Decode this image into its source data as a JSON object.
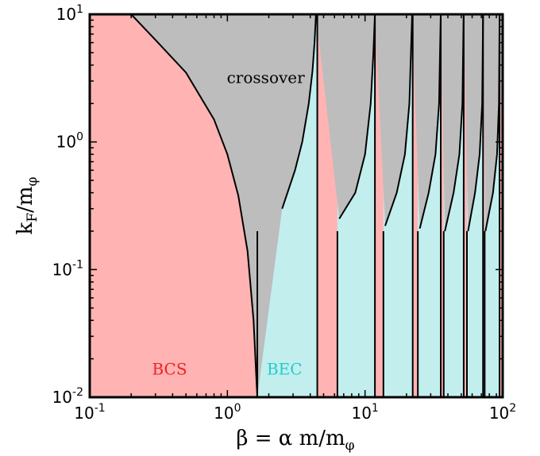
{
  "chart_data": {
    "type": "area",
    "title": "",
    "xlabel": {
      "prefix": "β = α m/m",
      "subscript": "φ"
    },
    "ylabel": {
      "base": "k",
      "base_sub": "F",
      "mid": "/m",
      "mid_sub": "φ"
    },
    "xscale": "log",
    "yscale": "log",
    "xlim": [
      0.1,
      100
    ],
    "ylim": [
      0.01,
      10
    ],
    "x_ticks": [
      {
        "value": 0.1,
        "base": "10",
        "exp": "-1"
      },
      {
        "value": 1,
        "base": "10",
        "exp": "0"
      },
      {
        "value": 10,
        "base": "10",
        "exp": "1"
      },
      {
        "value": 100,
        "base": "10",
        "exp": "2"
      }
    ],
    "y_ticks": [
      {
        "value": 0.01,
        "base": "10",
        "exp": "-2"
      },
      {
        "value": 0.1,
        "base": "10",
        "exp": "-1"
      },
      {
        "value": 1,
        "base": "10",
        "exp": "0"
      },
      {
        "value": 10,
        "base": "10",
        "exp": "1"
      }
    ],
    "grid": false,
    "regions": [
      {
        "name": "BCS",
        "color": "#ffb3b3",
        "label_at": [
          0.38,
          0.015
        ],
        "label_color": "#ee2222"
      },
      {
        "name": "BEC",
        "color": "#c2eeee",
        "label_at": [
          2.6,
          0.015
        ],
        "label_color": "#22cccc"
      },
      {
        "name": "crossover",
        "color": "#bdbdbd",
        "label_at": [
          1.9,
          2.9
        ],
        "label_color": "#000000"
      }
    ],
    "crossover_boundary": {
      "x": [
        0.2,
        0.3,
        0.5,
        0.8,
        1.0,
        1.2,
        1.4,
        1.55,
        1.62,
        1.65
      ],
      "y": [
        10,
        6.3,
        3.5,
        1.5,
        0.8,
        0.38,
        0.14,
        0.04,
        0.015,
        0.01
      ]
    },
    "resonances": [
      4.5,
      11.8,
      22.2,
      35.5,
      52.1,
      72.0,
      94.9
    ],
    "bec_lower_edges": [
      1.65,
      6.3,
      13.6,
      24.2,
      37.3,
      55.0,
      74.0
    ],
    "bec_curves": [
      {
        "x": [
          2.5,
          3.1,
          3.5,
          3.9,
          4.15,
          4.3,
          4.4
        ],
        "y": [
          0.3,
          0.6,
          1.0,
          2.0,
          3.6,
          6.0,
          10
        ]
      },
      {
        "x": [
          6.5,
          8.5,
          10.0,
          11.0,
          11.5,
          11.8
        ],
        "y": [
          0.25,
          0.4,
          0.8,
          2.0,
          5.0,
          10
        ]
      },
      {
        "x": [
          14.0,
          17.0,
          19.5,
          21.0,
          22.0
        ],
        "y": [
          0.22,
          0.4,
          0.8,
          2.0,
          10
        ]
      },
      {
        "x": [
          25.0,
          29.0,
          32.5,
          34.5,
          35.5
        ],
        "y": [
          0.21,
          0.4,
          0.8,
          2.0,
          10
        ]
      },
      {
        "x": [
          38.0,
          44.0,
          48.5,
          51.0,
          52.0
        ],
        "y": [
          0.2,
          0.4,
          0.8,
          2.0,
          10
        ]
      },
      {
        "x": [
          56.0,
          63.0,
          68.0,
          71.0,
          72.0
        ],
        "y": [
          0.2,
          0.4,
          0.8,
          2.0,
          10
        ]
      },
      {
        "x": [
          75.0,
          85.0,
          91.0,
          94.0,
          94.9
        ],
        "y": [
          0.2,
          0.4,
          0.8,
          2.0,
          10
        ]
      }
    ]
  }
}
